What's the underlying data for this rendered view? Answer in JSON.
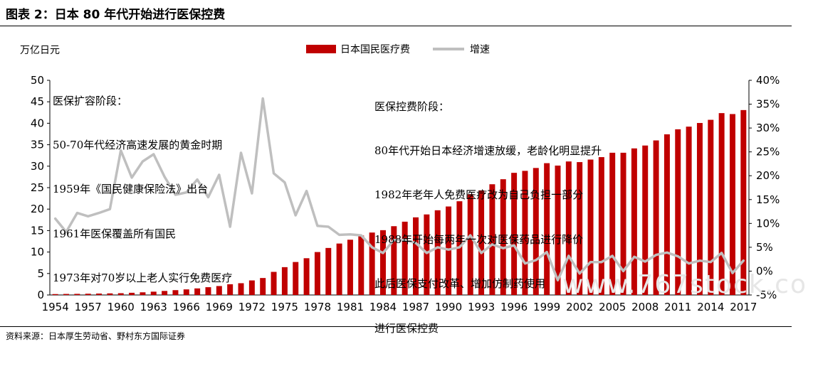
{
  "header": {
    "title": "图表 2：日本 80 年代开始进行医保控费"
  },
  "footer": {
    "source": "资料来源：日本厚生劳动省、野村东方国际证券"
  },
  "watermark": "www.767stock.co",
  "colors": {
    "bar": "#c00000",
    "line": "#bfbfbf"
  },
  "chart_data": {
    "type": "bar+line",
    "unit_label": "万亿日元",
    "categories": [
      "1954",
      "1955",
      "1956",
      "1957",
      "1958",
      "1959",
      "1960",
      "1961",
      "1962",
      "1963",
      "1964",
      "1965",
      "1966",
      "1967",
      "1968",
      "1969",
      "1970",
      "1971",
      "1972",
      "1973",
      "1974",
      "1975",
      "1976",
      "1977",
      "1978",
      "1979",
      "1980",
      "1981",
      "1982",
      "1983",
      "1984",
      "1985",
      "1986",
      "1987",
      "1988",
      "1989",
      "1990",
      "1991",
      "1992",
      "1993",
      "1994",
      "1995",
      "1996",
      "1997",
      "1998",
      "1999",
      "2000",
      "2001",
      "2002",
      "2003",
      "2004",
      "2005",
      "2006",
      "2007",
      "2008",
      "2009",
      "2010",
      "2011",
      "2012",
      "2013",
      "2014",
      "2015",
      "2016",
      "2017"
    ],
    "xtick_labels": [
      "1954",
      "1957",
      "1960",
      "1963",
      "1966",
      "1969",
      "1972",
      "1975",
      "1978",
      "1981",
      "1984",
      "1987",
      "1990",
      "1993",
      "1996",
      "1999",
      "2002",
      "2005",
      "2008",
      "2011",
      "2014",
      "2017"
    ],
    "series": [
      {
        "name": "日本国民医疗费",
        "type": "bar",
        "axis": "left",
        "values": [
          0.21,
          0.24,
          0.26,
          0.29,
          0.33,
          0.37,
          0.41,
          0.51,
          0.62,
          0.77,
          0.94,
          1.12,
          1.3,
          1.53,
          1.81,
          2.08,
          2.5,
          2.74,
          3.39,
          3.95,
          5.38,
          6.48,
          7.68,
          8.56,
          10.0,
          10.95,
          11.98,
          12.87,
          13.85,
          14.54,
          15.09,
          16.02,
          17.07,
          18.08,
          18.76,
          19.73,
          20.61,
          21.83,
          23.48,
          24.36,
          25.79,
          26.96,
          28.45,
          28.91,
          29.58,
          30.7,
          30.14,
          31.1,
          30.95,
          31.54,
          32.11,
          33.13,
          33.13,
          34.14,
          34.81,
          36.0,
          37.42,
          38.59,
          39.21,
          40.06,
          40.8,
          42.36,
          42.14,
          43.07
        ]
      },
      {
        "name": "增速",
        "type": "line",
        "axis": "right",
        "values": [
          11,
          8.2,
          12.2,
          11.5,
          12.2,
          13,
          25.3,
          19.6,
          23,
          24.5,
          19.8,
          16,
          16.5,
          19.2,
          15.5,
          20.2,
          9.3,
          24.8,
          16.3,
          36.2,
          20.5,
          18.6,
          11.7,
          16.8,
          9.5,
          9.3,
          7.6,
          7.7,
          7.5,
          5,
          3.8,
          6.5,
          6.5,
          5.9,
          3.8,
          5,
          4.5,
          5,
          7.5,
          3.8,
          5.6,
          4.8,
          5.4,
          1.6,
          2.3,
          4,
          -1.9,
          3.2,
          -0.5,
          1.9,
          1.9,
          3.2,
          0,
          3.0,
          2.0,
          3.4,
          3.9,
          3.1,
          1.6,
          2.2,
          1.9,
          3.8,
          -0.4,
          2.2
        ]
      }
    ],
    "left_axis": {
      "min": 0,
      "max": 50,
      "step": 5,
      "ticks": [
        "0",
        "5",
        "10",
        "15",
        "20",
        "25",
        "30",
        "35",
        "40",
        "45",
        "50"
      ]
    },
    "right_axis": {
      "min": -5,
      "max": 40,
      "step": 5,
      "ticks": [
        "-5%",
        "0%",
        "5%",
        "10%",
        "15%",
        "20%",
        "25%",
        "30%",
        "35%",
        "40%"
      ]
    },
    "legend_position": "top-center",
    "annotations": [
      {
        "lines": [
          "医保扩容阶段：",
          "50-70年代经济高速发展的黄金时期",
          "1959年《国民健康保险法》出台",
          "1961年医保覆盖所有国民",
          "1973年对70岁以上老人实行免费医疗"
        ]
      },
      {
        "lines": [
          "医保控费阶段：",
          "80年代开始日本经济增速放缓，老龄化明显提升",
          "1982年老年人免费医疗改为自己负担一部分",
          "1988年开始每两年一次对医保药品进行降价",
          "此后医保支付改革、增加仿制药使用",
          "进行医保控费"
        ]
      }
    ]
  }
}
